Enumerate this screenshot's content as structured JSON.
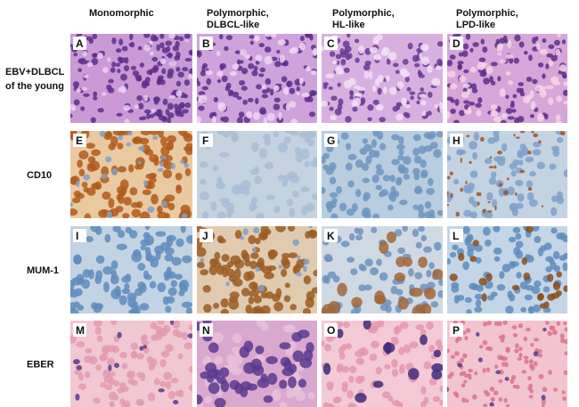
{
  "columns": [
    {
      "lines": [
        "Monomorphic"
      ]
    },
    {
      "lines": [
        "Polymorphic,",
        "DLBCL-like"
      ]
    },
    {
      "lines": [
        "Polymorphic,",
        "HL-like"
      ]
    },
    {
      "lines": [
        "Polymorphic,",
        "LPD-like"
      ]
    }
  ],
  "rows": [
    {
      "lines": [
        "EBV+DLBCL",
        "of the young"
      ],
      "panels": [
        "A",
        "B",
        "C",
        "D"
      ]
    },
    {
      "lines": [
        "CD10"
      ],
      "panels": [
        "E",
        "F",
        "G",
        "H"
      ]
    },
    {
      "lines": [
        "MUM-1"
      ],
      "panels": [
        "I",
        "J",
        "K",
        "L"
      ]
    },
    {
      "lines": [
        "EBER"
      ],
      "panels": [
        "M",
        "N",
        "O",
        "P"
      ]
    }
  ]
}
